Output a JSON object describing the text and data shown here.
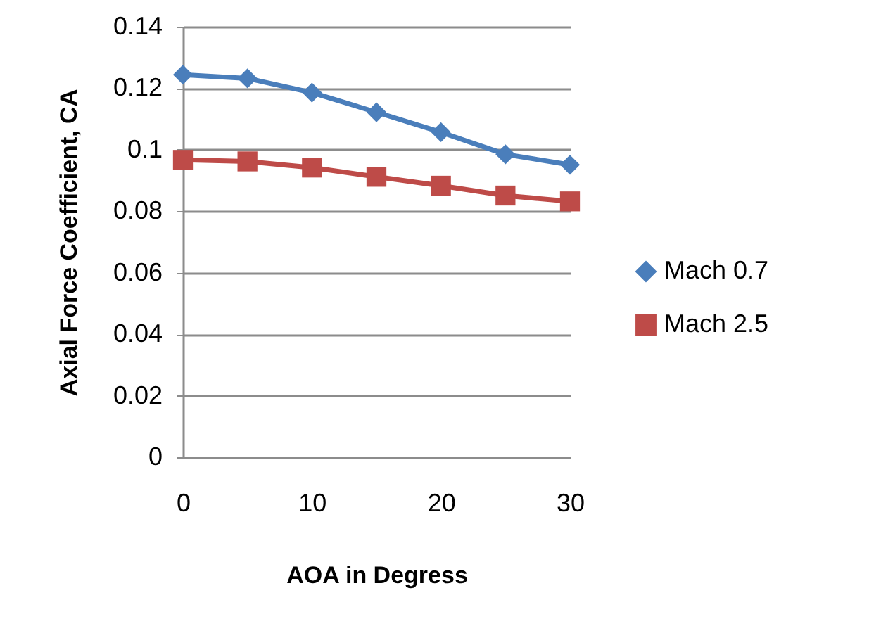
{
  "chart_data": {
    "type": "line",
    "xlabel": "AOA in Degress",
    "ylabel": "Axial Force Coefficient, CA",
    "x": [
      0,
      5,
      10,
      15,
      20,
      25,
      30
    ],
    "series": [
      {
        "name": "Mach 0.7",
        "color": "#4a7ebb",
        "marker": "diamond",
        "values": [
          0.1244,
          0.1232,
          0.1186,
          0.1122,
          0.1057,
          0.0985,
          0.0951
        ]
      },
      {
        "name": "Mach 2.5",
        "color": "#be4b48",
        "marker": "square",
        "values": [
          0.0967,
          0.0962,
          0.0942,
          0.0912,
          0.0883,
          0.0851,
          0.0832
        ]
      }
    ],
    "xlim": [
      0,
      30
    ],
    "xticks": [
      0,
      10,
      20,
      30
    ],
    "ylim": [
      0,
      0.14
    ],
    "yticks": [
      0,
      0.02,
      0.04,
      0.06,
      0.08,
      0.1,
      0.12,
      0.14
    ],
    "grid": "y",
    "legend": "right",
    "line_style": "solid"
  }
}
